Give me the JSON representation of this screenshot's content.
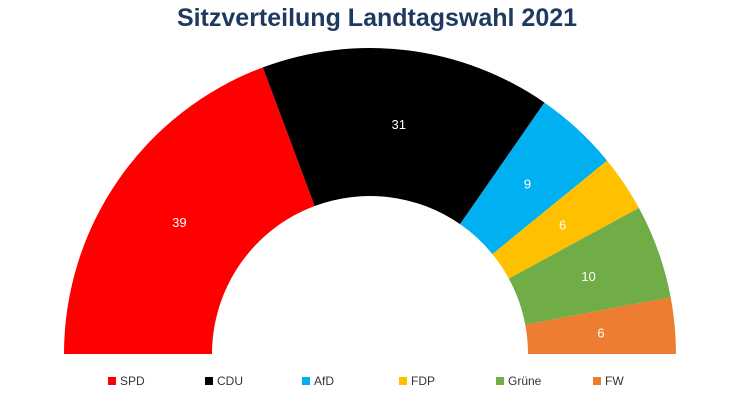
{
  "chart_data": {
    "type": "pie",
    "subtype": "half-donut",
    "title": "Sitzverteilung Landtagswahl 2021",
    "categories": [
      "SPD",
      "CDU",
      "AfD",
      "FDP",
      "Grüne",
      "FW"
    ],
    "values": [
      39,
      31,
      9,
      6,
      10,
      6
    ],
    "colors": [
      "#ff0000",
      "#000000",
      "#00b0f0",
      "#ffc000",
      "#70ad47",
      "#ed7d31"
    ],
    "label_colors": [
      "#ffffff",
      "#ffffff",
      "#ffffff",
      "#ffffff",
      "#ffffff",
      "#ffffff"
    ],
    "legend": "bottom"
  }
}
